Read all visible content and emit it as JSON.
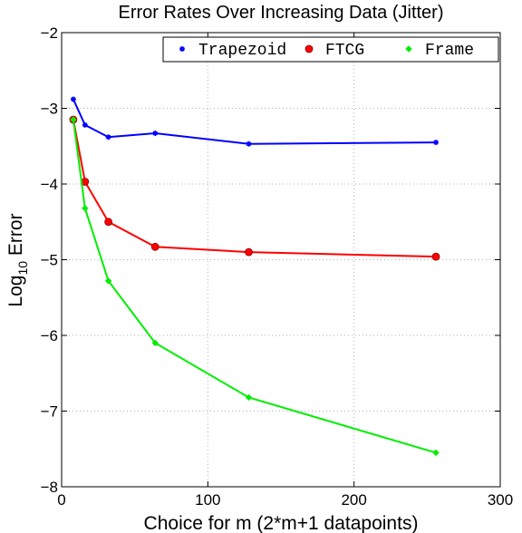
{
  "chart_data": {
    "type": "line",
    "title": "Error Rates Over Increasing Data (Jitter)",
    "xlabel": "Choice for m (2*m+1 datapoints)",
    "ylabel_main": "Log",
    "ylabel_sub": "10",
    "ylabel_tail": " Error",
    "xlim": [
      0,
      300
    ],
    "ylim": [
      -8,
      -2
    ],
    "xticks": [
      0,
      100,
      200,
      300
    ],
    "yticks": [
      -8,
      -7,
      -6,
      -5,
      -4,
      -3,
      -2
    ],
    "grid": true,
    "legend_position": "top-right",
    "series": [
      {
        "name": "Trapezoid",
        "color": "#0000ff",
        "marker": "star",
        "x": [
          8,
          16,
          32,
          64,
          128,
          256
        ],
        "y": [
          -2.88,
          -3.22,
          -3.38,
          -3.33,
          -3.47,
          -3.45
        ]
      },
      {
        "name": "FTCG",
        "color": "#ff0000",
        "marker": "circle",
        "x": [
          8,
          16,
          32,
          64,
          128,
          256
        ],
        "y": [
          -3.15,
          -3.97,
          -4.5,
          -4.83,
          -4.9,
          -4.96
        ]
      },
      {
        "name": "Frame",
        "color": "#00ee00",
        "marker": "diamond",
        "x": [
          8,
          16,
          32,
          64,
          128,
          256
        ],
        "y": [
          -3.15,
          -4.32,
          -5.28,
          -6.1,
          -6.82,
          -7.55
        ]
      }
    ]
  }
}
